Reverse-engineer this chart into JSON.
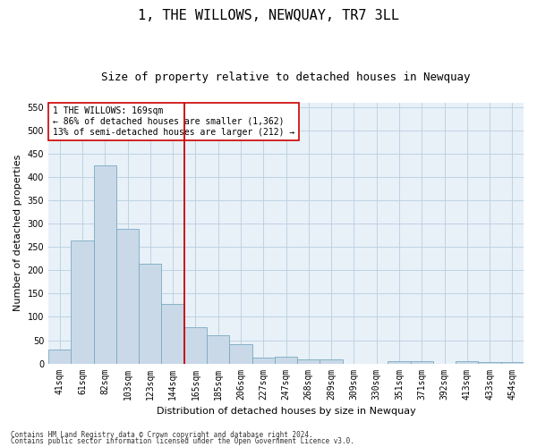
{
  "title": "1, THE WILLOWS, NEWQUAY, TR7 3LL",
  "subtitle": "Size of property relative to detached houses in Newquay",
  "xlabel": "Distribution of detached houses by size in Newquay",
  "ylabel": "Number of detached properties",
  "categories": [
    "41sqm",
    "61sqm",
    "82sqm",
    "103sqm",
    "123sqm",
    "144sqm",
    "165sqm",
    "185sqm",
    "206sqm",
    "227sqm",
    "247sqm",
    "268sqm",
    "289sqm",
    "309sqm",
    "330sqm",
    "351sqm",
    "371sqm",
    "392sqm",
    "413sqm",
    "433sqm",
    "454sqm"
  ],
  "values": [
    30,
    265,
    425,
    290,
    215,
    128,
    77,
    60,
    41,
    13,
    15,
    8,
    8,
    0,
    0,
    5,
    5,
    0,
    4,
    3,
    3
  ],
  "bar_color": "#c9d9e8",
  "bar_edge_color": "#7aaabf",
  "grid_color": "#b8cfe0",
  "background_color": "#e8f0f8",
  "vline_color": "#cc0000",
  "annotation_text": "1 THE WILLOWS: 169sqm\n← 86% of detached houses are smaller (1,362)\n13% of semi-detached houses are larger (212) →",
  "annotation_box_color": "#cc0000",
  "ylim": [
    0,
    560
  ],
  "yticks": [
    0,
    50,
    100,
    150,
    200,
    250,
    300,
    350,
    400,
    450,
    500,
    550
  ],
  "footnote1": "Contains HM Land Registry data © Crown copyright and database right 2024.",
  "footnote2": "Contains public sector information licensed under the Open Government Licence v3.0.",
  "title_fontsize": 11,
  "subtitle_fontsize": 9,
  "tick_fontsize": 7,
  "label_fontsize": 8,
  "annotation_fontsize": 7,
  "footnote_fontsize": 5.5
}
